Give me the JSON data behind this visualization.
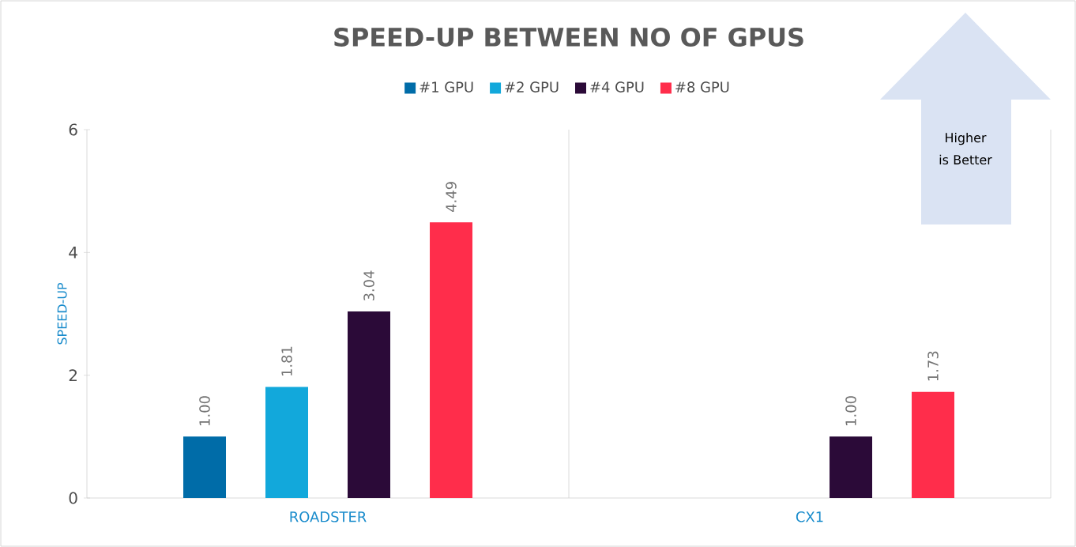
{
  "chart_data": {
    "type": "bar",
    "title": "SPEED-UP BETWEEN NO OF GPUS",
    "ylabel": "SPEED-UP",
    "categories": [
      "ROADSTER",
      "CX1"
    ],
    "series": [
      {
        "name": "#1 GPU",
        "color": "#006ca8",
        "values": [
          1.0,
          null
        ],
        "value_labels": [
          "1.00",
          null
        ]
      },
      {
        "name": "#2 GPU",
        "color": "#12a8db",
        "values": [
          1.81,
          null
        ],
        "value_labels": [
          "1.81",
          null
        ]
      },
      {
        "name": "#4 GPU",
        "color": "#2b0a38",
        "values": [
          3.04,
          1.0
        ],
        "value_labels": [
          "3.04",
          "1.00"
        ]
      },
      {
        "name": "#8 GPU",
        "color": "#ff2d4b",
        "values": [
          4.49,
          1.73
        ],
        "value_labels": [
          "4.49",
          "1.73"
        ]
      }
    ],
    "ylim": [
      0,
      6
    ],
    "yticks": [
      0,
      2,
      4,
      6
    ],
    "grid": false,
    "legend": "top",
    "annotations": [
      "Higher is Better"
    ]
  }
}
